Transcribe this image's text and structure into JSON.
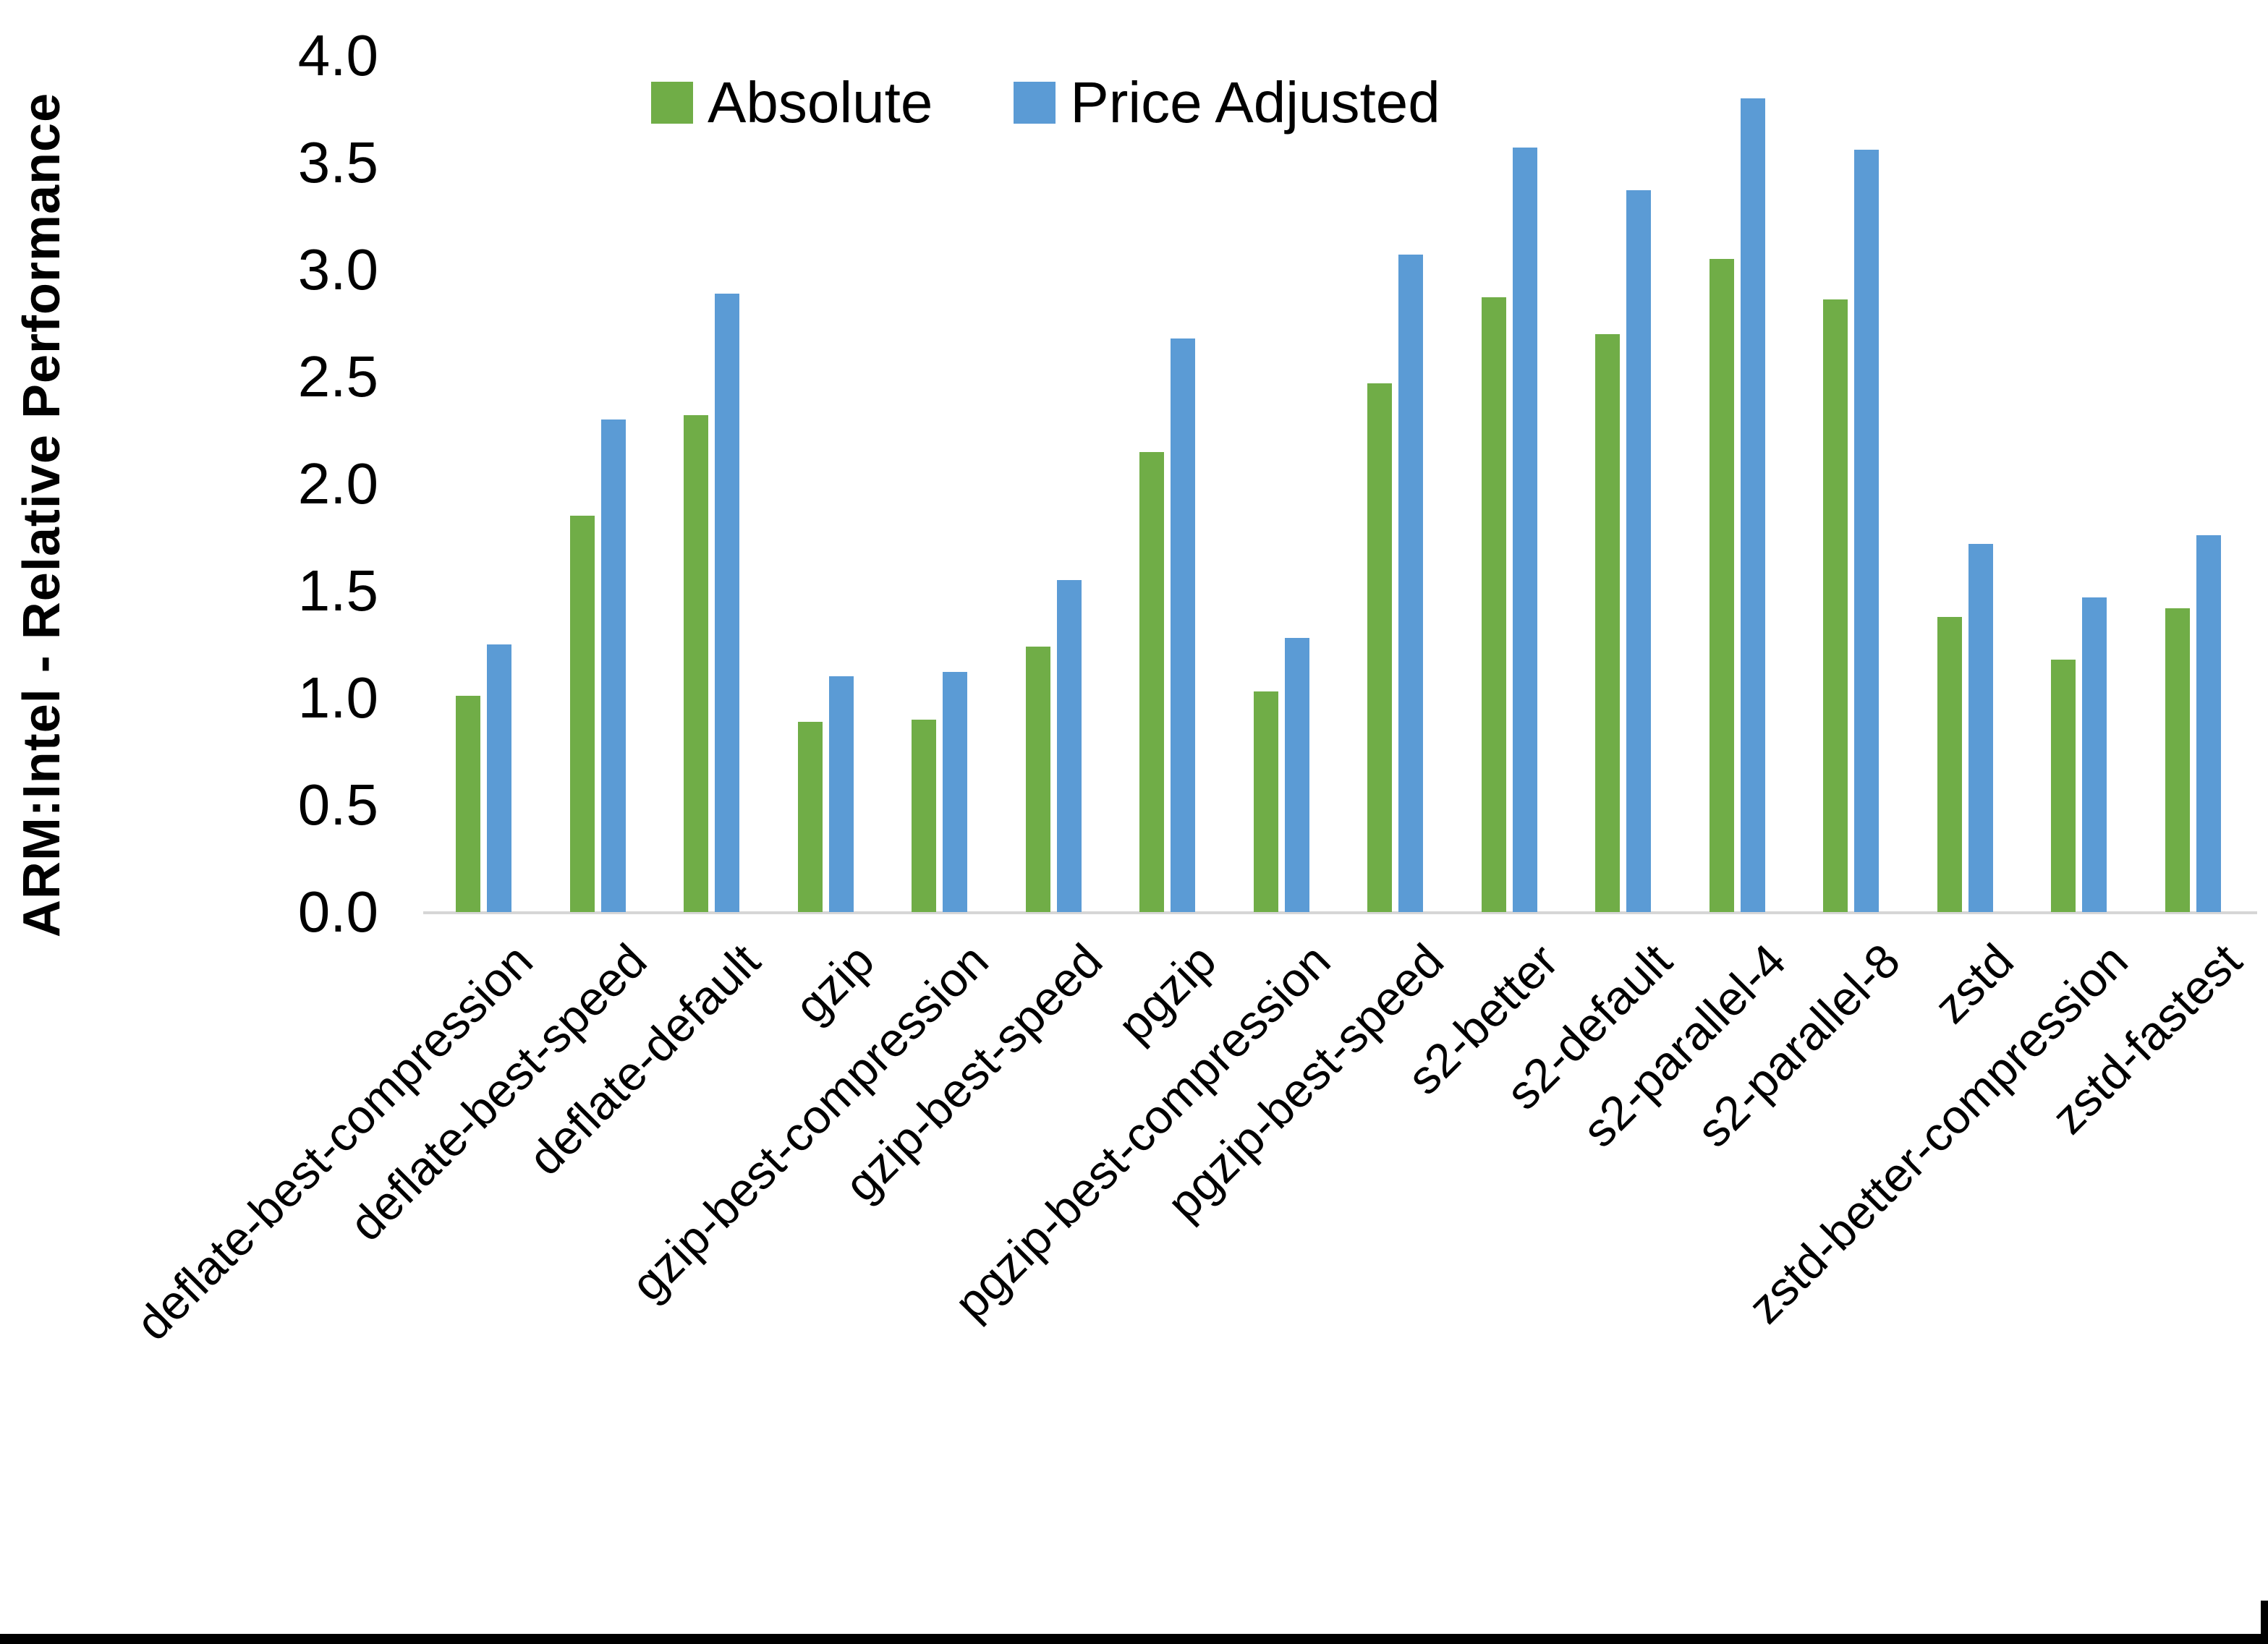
{
  "chart_data": {
    "type": "bar",
    "title": "",
    "xlabel": "",
    "ylabel": "ARM:Intel - Relative Performance",
    "ylim": [
      0.0,
      4.0
    ],
    "ytick_step": 0.5,
    "ytick_format_decimals": 1,
    "grid": false,
    "legend_position": "top-center",
    "categories": [
      "deflate-best-compression",
      "deflate-best-speed",
      "deflate-default",
      "gzip",
      "gzip-best-compression",
      "gzip-best-speed",
      "pgzip",
      "pgzip-best-compression",
      "pgzip-best-speed",
      "s2-better",
      "s2-default",
      "s2-parallel-4",
      "s2-parallel-8",
      "zstd",
      "zstd-better-compression",
      "zstd-fastest"
    ],
    "series": [
      {
        "name": "Absolute",
        "color": "#70AD47",
        "values": [
          1.01,
          1.85,
          2.32,
          0.89,
          0.9,
          1.24,
          2.15,
          1.03,
          2.47,
          2.87,
          2.7,
          3.05,
          2.86,
          1.38,
          1.18,
          1.42
        ]
      },
      {
        "name": "Price Adjusted",
        "color": "#5B9BD5",
        "values": [
          1.25,
          2.3,
          2.89,
          1.1,
          1.12,
          1.55,
          2.68,
          1.28,
          3.07,
          3.57,
          3.37,
          3.8,
          3.56,
          1.72,
          1.47,
          1.76
        ]
      }
    ]
  },
  "colors": {
    "background": "#FFFFFF",
    "axis_line": "#D6D6D6",
    "text": "#000000",
    "bottom_bar": "#000000"
  }
}
